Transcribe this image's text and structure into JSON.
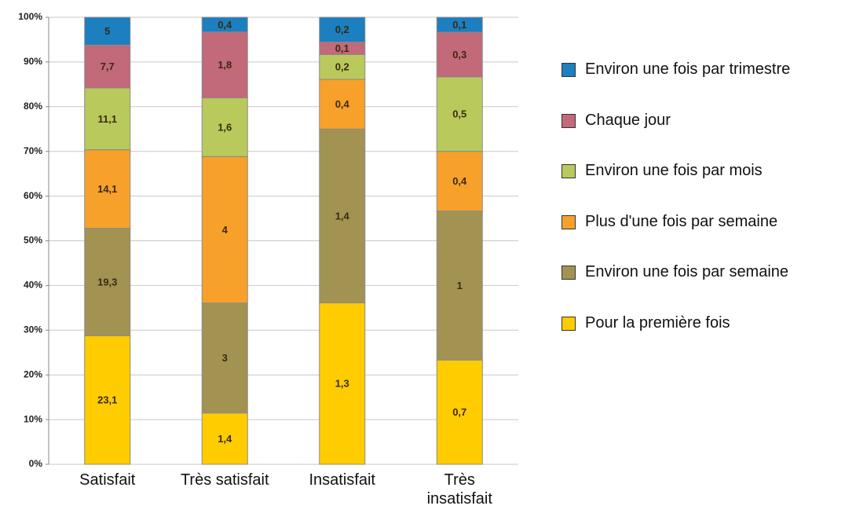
{
  "chart_data": {
    "type": "bar",
    "stacked": "percent",
    "categories": [
      "Satisfait",
      "Très satisfait",
      "Insatisfait",
      "Très insatisfait"
    ],
    "series": [
      {
        "name": "Pour la première fois",
        "color": "#ffcc00",
        "values": [
          23.1,
          1.4,
          1.3,
          0.7
        ],
        "value_labels": [
          "23,1",
          "1,4",
          "1,3",
          "0,7"
        ]
      },
      {
        "name": "Environ une fois par semaine",
        "color": "#a29353",
        "values": [
          19.3,
          3,
          1.4,
          1
        ],
        "value_labels": [
          "19,3",
          "3",
          "1,4",
          "1"
        ]
      },
      {
        "name": "Plus d'une fois par semaine",
        "color": "#f7a12b",
        "values": [
          14.1,
          4,
          0.4,
          0.4
        ],
        "value_labels": [
          "14,1",
          "4",
          "0,4",
          "0,4"
        ]
      },
      {
        "name": "Environ une fois par mois",
        "color": "#b9c95c",
        "values": [
          11.1,
          1.6,
          0.2,
          0.5
        ],
        "value_labels": [
          "11,1",
          "1,6",
          "0,2",
          "0,5"
        ]
      },
      {
        "name": "Chaque jour",
        "color": "#c2697a",
        "values": [
          7.7,
          1.8,
          0.1,
          0.3
        ],
        "value_labels": [
          "7,7",
          "1,8",
          "0,1",
          "0,3"
        ]
      },
      {
        "name": "Environ une fois par trimestre",
        "color": "#1b7fc0",
        "values": [
          5,
          0.4,
          0.2,
          0.1
        ],
        "value_labels": [
          "5",
          "0,4",
          "0,2",
          "0,1"
        ]
      }
    ],
    "ylim": [
      0,
      100
    ],
    "yticks": [
      {
        "value": 0,
        "label": "0%"
      },
      {
        "value": 10,
        "label": "10%"
      },
      {
        "value": 20,
        "label": "20%"
      },
      {
        "value": 30,
        "label": "30%"
      },
      {
        "value": 40,
        "label": "40%"
      },
      {
        "value": 50,
        "label": "50%"
      },
      {
        "value": 60,
        "label": "60%"
      },
      {
        "value": 70,
        "label": "70%"
      },
      {
        "value": 80,
        "label": "80%"
      },
      {
        "value": 90,
        "label": "90%"
      },
      {
        "value": 100,
        "label": "100%"
      }
    ],
    "grid": true,
    "legend": "right"
  }
}
